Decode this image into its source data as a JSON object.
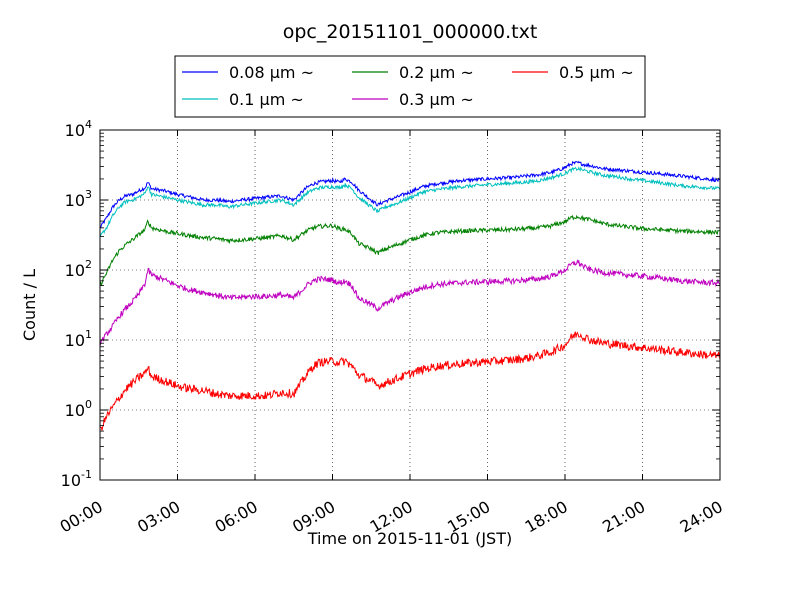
{
  "chart_data": {
    "type": "line",
    "title": "opc_20151101_000000.txt",
    "xlabel": "Time on 2015-11-01 (JST)",
    "ylabel": "Count / L",
    "x_unit": "hours",
    "xlim": [
      0,
      24
    ],
    "ylim": [
      0.1,
      10000
    ],
    "yscale": "log",
    "grid": true,
    "legend_position": "top-center",
    "x_ticks": [
      {
        "value": 0,
        "label": "00:00"
      },
      {
        "value": 3,
        "label": "03:00"
      },
      {
        "value": 6,
        "label": "06:00"
      },
      {
        "value": 9,
        "label": "09:00"
      },
      {
        "value": 12,
        "label": "12:00"
      },
      {
        "value": 15,
        "label": "15:00"
      },
      {
        "value": 18,
        "label": "18:00"
      },
      {
        "value": 21,
        "label": "21:00"
      },
      {
        "value": 24,
        "label": "24:00"
      }
    ],
    "y_ticks": [
      {
        "value": 0.1,
        "base": "10",
        "exp": "-1"
      },
      {
        "value": 1,
        "base": "10",
        "exp": "0"
      },
      {
        "value": 10,
        "base": "10",
        "exp": "1"
      },
      {
        "value": 100,
        "base": "10",
        "exp": "2"
      },
      {
        "value": 1000,
        "base": "10",
        "exp": "3"
      },
      {
        "value": 10000,
        "base": "10",
        "exp": "4"
      }
    ],
    "x": [
      0,
      0.25,
      0.5,
      0.75,
      1,
      1.25,
      1.5,
      1.75,
      1.85,
      2,
      2.5,
      3,
      3.5,
      4,
      4.5,
      5,
      5.5,
      6,
      6.5,
      7,
      7.5,
      8,
      8.25,
      8.5,
      9,
      9.25,
      9.5,
      9.75,
      10,
      10.5,
      10.75,
      11,
      11.5,
      12,
      12.5,
      13,
      14,
      15,
      16,
      16.5,
      17,
      17.5,
      18,
      18.25,
      18.5,
      18.75,
      19,
      19.5,
      20,
      20.5,
      21,
      21.5,
      22,
      22.5,
      23,
      23.5,
      24
    ],
    "series": [
      {
        "name": "0.08 μm ~",
        "color": "#0000ff",
        "values": [
          400,
          550,
          800,
          1000,
          1150,
          1200,
          1350,
          1500,
          1800,
          1450,
          1350,
          1200,
          1100,
          1000,
          1000,
          950,
          1000,
          1050,
          1100,
          1150,
          1000,
          1500,
          1700,
          1800,
          1900,
          1800,
          2000,
          1800,
          1400,
          1000,
          850,
          950,
          1100,
          1300,
          1550,
          1700,
          1900,
          2000,
          2100,
          2200,
          2300,
          2500,
          2900,
          3300,
          3400,
          3200,
          3100,
          2800,
          2700,
          2600,
          2500,
          2400,
          2300,
          2200,
          2100,
          2000,
          1900
        ]
      },
      {
        "name": "0.1 μm ~",
        "color": "#00bfbf",
        "values": [
          300,
          400,
          600,
          800,
          950,
          1000,
          1100,
          1250,
          1600,
          1200,
          1100,
          1000,
          920,
          850,
          850,
          800,
          850,
          900,
          950,
          1000,
          850,
          1250,
          1400,
          1500,
          1550,
          1500,
          1650,
          1450,
          1100,
          800,
          680,
          780,
          900,
          1080,
          1300,
          1400,
          1550,
          1650,
          1750,
          1800,
          1900,
          2100,
          2400,
          2700,
          2800,
          2650,
          2500,
          2250,
          2150,
          2000,
          1900,
          1800,
          1700,
          1600,
          1550,
          1500,
          1450
        ]
      },
      {
        "name": "0.2 μm ~",
        "color": "#008000",
        "values": [
          60,
          90,
          140,
          190,
          230,
          270,
          320,
          380,
          500,
          400,
          360,
          330,
          310,
          290,
          280,
          265,
          270,
          280,
          290,
          310,
          270,
          360,
          400,
          420,
          430,
          390,
          380,
          330,
          240,
          200,
          175,
          195,
          230,
          270,
          310,
          340,
          360,
          370,
          380,
          390,
          400,
          430,
          490,
          560,
          580,
          540,
          520,
          460,
          430,
          410,
          390,
          380,
          370,
          360,
          355,
          350,
          345
        ]
      },
      {
        "name": "0.3 μm ~",
        "color": "#bf00bf",
        "values": [
          9,
          12,
          16,
          22,
          28,
          35,
          45,
          65,
          100,
          85,
          72,
          60,
          52,
          48,
          44,
          40,
          41,
          42,
          42,
          44,
          40,
          60,
          70,
          75,
          72,
          65,
          70,
          60,
          40,
          32,
          28,
          32,
          40,
          48,
          56,
          62,
          66,
          68,
          70,
          72,
          75,
          82,
          100,
          120,
          130,
          110,
          100,
          92,
          88,
          85,
          82,
          78,
          74,
          70,
          68,
          66,
          65
        ]
      },
      {
        "name": "0.5 μm ~",
        "color": "#ff0000",
        "values": [
          0.5,
          0.8,
          1.1,
          1.5,
          2.0,
          2.4,
          2.9,
          3.4,
          4.0,
          3.0,
          2.6,
          2.2,
          2.0,
          1.9,
          1.7,
          1.6,
          1.6,
          1.6,
          1.6,
          1.8,
          1.7,
          3.2,
          4.2,
          4.8,
          5.0,
          4.8,
          5.0,
          4.2,
          3.2,
          2.6,
          2.2,
          2.4,
          2.8,
          3.3,
          3.8,
          4.2,
          4.6,
          4.9,
          5.2,
          5.5,
          6.0,
          6.8,
          8.5,
          11.0,
          12.5,
          11.0,
          10.0,
          9.0,
          8.6,
          8.2,
          7.8,
          7.4,
          7.0,
          6.7,
          6.4,
          6.1,
          5.9
        ]
      }
    ]
  }
}
